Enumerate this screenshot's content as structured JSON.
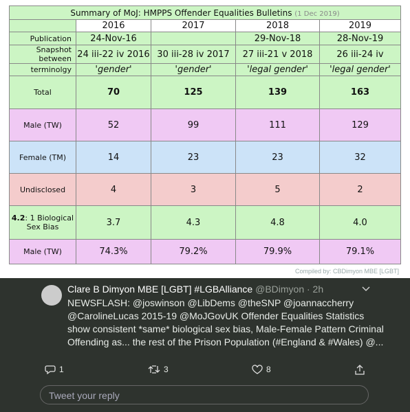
{
  "table": {
    "title": "Summary of MoJ: HMPPS Offender Equalities Bulletins",
    "title_note": "(1 Dec 2019)",
    "years": [
      "2016",
      "2017",
      "2018",
      "2019"
    ],
    "publication": {
      "label": "Publication",
      "values": [
        "24-Nov-16",
        null,
        "29-Nov-18",
        "28-Nov-19"
      ]
    },
    "snapshot": {
      "label": "Snapshot between",
      "values": [
        "24 iii-22 iv 2016",
        "30 iii-28 iv 2017",
        "27 iii-21 v 2018",
        "26 iii-24 iv"
      ]
    },
    "terminology": {
      "label": "terminolgy",
      "values": [
        "'gender'",
        "'gender'",
        "'legal gender'",
        "'legal gender'"
      ]
    },
    "rows": [
      {
        "label": "Total",
        "values": [
          "70",
          "125",
          "139",
          "163"
        ]
      },
      {
        "label": "Male (TW)",
        "values": [
          "52",
          "99",
          "111",
          "129"
        ]
      },
      {
        "label": "Female (TM)",
        "values": [
          "14",
          "23",
          "23",
          "32"
        ]
      },
      {
        "label": "Undisclosed",
        "values": [
          "4",
          "3",
          "5",
          "2"
        ]
      },
      {
        "label_bold": "4.2",
        "label": ": 1 Biological Sex Bias",
        "values": [
          "3.7",
          "4.3",
          "4.8",
          "4.0"
        ]
      },
      {
        "label": "Male (TW)",
        "values": [
          "74.3%",
          "79.2%",
          "79.9%",
          "79.1%"
        ]
      }
    ],
    "credit": "Compiled by: CBDimyon MBE [LGBT]"
  },
  "tweet": {
    "name": "Clare B Dimyon MBE [LGBT] #LGBAlliance",
    "handle": "@BDimyon · 2h",
    "lines": [
      "NEWSFLASH: @joswinson @LibDems @theSNP @joannaccherry",
      "@CarolineLucas 2015-19 @MoJGovUK Offender Equalities Statistics",
      "show consistent *same* biological sex bias, Male-Female Pattern Criminal",
      "Offending as... the rest of the Prison Population (#England & #Wales) @..."
    ],
    "replies": "1",
    "retweets": "3",
    "likes": "8",
    "reply_placeholder": "Tweet your reply"
  }
}
